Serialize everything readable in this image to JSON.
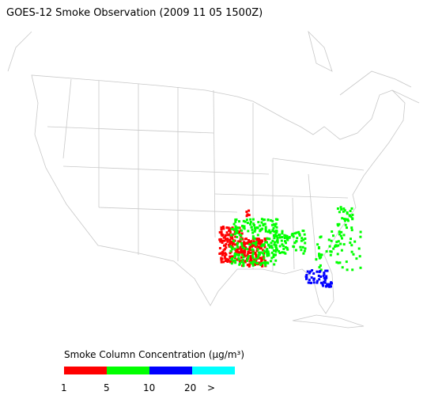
{
  "title": "GOES-12 Smoke Observation (2009 11 05  1500Z)",
  "legend": {
    "label": "Smoke Column Concentration (μg/m³)",
    "colors": [
      "#ff0000",
      "#00ff00",
      "#0000ff",
      "#00ffff"
    ],
    "ticks": [
      "1",
      "5",
      "10",
      "20",
      ">"
    ]
  }
}
